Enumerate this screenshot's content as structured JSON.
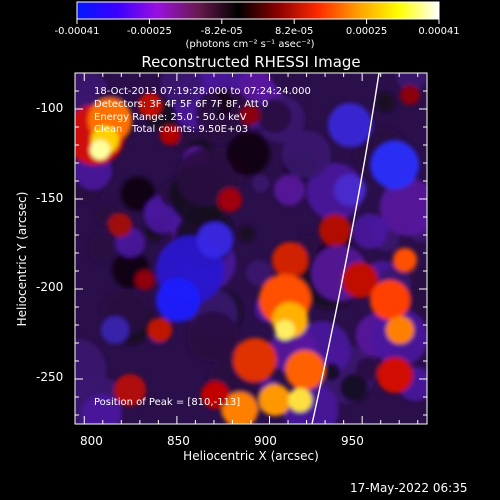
{
  "colorbar": {
    "tick_labels": [
      "-0.00041",
      "-0.00025",
      "-8.2e-05",
      "8.2e-05",
      "0.00025",
      "0.00041"
    ],
    "unit_label": "(photons cm⁻² s⁻¹ asec⁻²)",
    "range": [
      -0.00041,
      0.00041
    ],
    "colors": [
      "#0018ff",
      "#3a00ff",
      "#9a10e0",
      "#6a1a50",
      "#000000",
      "#8a0000",
      "#ff2a00",
      "#ffa000",
      "#ffff00",
      "#ffffff"
    ]
  },
  "plot": {
    "title": "Reconstructed RHESSI Image",
    "x_label": "Heliocentric X (arcsec)",
    "y_label": "Heliocentric Y (arcsec)",
    "x_ticks": [
      "800",
      "850",
      "900",
      "950"
    ],
    "y_ticks": [
      "-100",
      "-150",
      "-200",
      "-250"
    ],
    "x_range": [
      795,
      985
    ],
    "y_range": [
      -275,
      -80
    ]
  },
  "annotations": {
    "time_range": "18-Oct-2013 07:19:28.000 to 07:24:24.000",
    "detectors": "Detectors: 3F 4F 5F 6F 7F 8F, Att 0",
    "energy_range": "Energy Range: 25.0 - 50.0 keV",
    "clean_counts": "Clean   Total counts: 9.50E+03",
    "peak_position": "Position of Peak = [810,-113]"
  },
  "footer": {
    "timestamp": "17-May-2022 06:35"
  }
}
